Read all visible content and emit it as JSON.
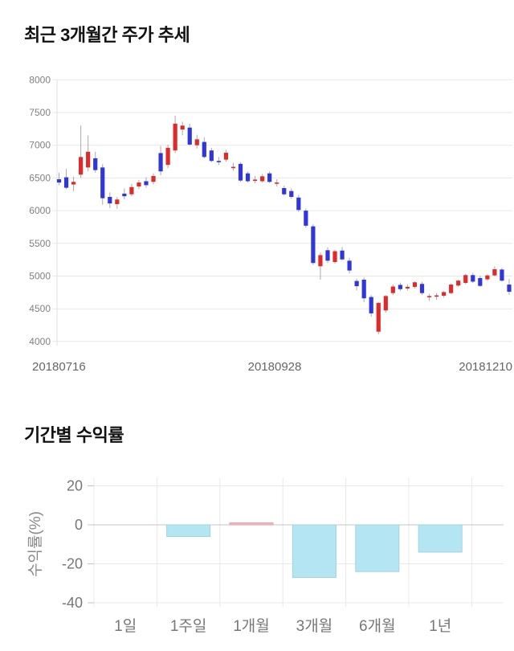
{
  "page": {
    "background": "#ffffff"
  },
  "price_chart": {
    "title": "최근 3개월간 주가 추세"
  },
  "returns_chart": {
    "title": "기간별 수익률"
  },
  "chart_data": [
    {
      "type": "candlestick",
      "title": "최근 3개월간 주가 추세",
      "ylim": [
        4000,
        8000
      ],
      "y_ticks": [
        8000,
        7500,
        7000,
        6500,
        6000,
        5500,
        5000,
        4500,
        4000
      ],
      "x_labels": [
        "20180716",
        "20180928",
        "20181210"
      ],
      "grid": true,
      "up_color": "#e02a2a",
      "down_color": "#2f36dd",
      "wick_color": "#aaaaaa",
      "tick_label_color": "#808080",
      "x_label_color": "#666666",
      "ohlc": [
        [
          6480,
          6580,
          6390,
          6430
        ],
        [
          6510,
          6640,
          6330,
          6350
        ],
        [
          6400,
          6520,
          6300,
          6440
        ],
        [
          6550,
          7300,
          6500,
          6820
        ],
        [
          6660,
          7150,
          6600,
          6900
        ],
        [
          6800,
          6900,
          6580,
          6620
        ],
        [
          6660,
          6710,
          6090,
          6190
        ],
        [
          6210,
          6280,
          6040,
          6110
        ],
        [
          6100,
          6210,
          6030,
          6170
        ],
        [
          6260,
          6340,
          6170,
          6220
        ],
        [
          6250,
          6410,
          6220,
          6360
        ],
        [
          6370,
          6470,
          6330,
          6430
        ],
        [
          6450,
          6510,
          6350,
          6390
        ],
        [
          6440,
          6570,
          6400,
          6530
        ],
        [
          6880,
          6990,
          6540,
          6600
        ],
        [
          6700,
          7010,
          6650,
          6960
        ],
        [
          6920,
          7450,
          6880,
          7330
        ],
        [
          7240,
          7360,
          7150,
          7300
        ],
        [
          7270,
          7330,
          6990,
          7010
        ],
        [
          7000,
          7160,
          6950,
          7090
        ],
        [
          7050,
          7120,
          6800,
          6820
        ],
        [
          6920,
          6960,
          6740,
          6760
        ],
        [
          6760,
          6820,
          6700,
          6755
        ],
        [
          6780,
          6930,
          6750,
          6885
        ],
        [
          6650,
          6730,
          6610,
          6670
        ],
        [
          6715,
          6740,
          6440,
          6460
        ],
        [
          6570,
          6600,
          6430,
          6450
        ],
        [
          6470,
          6530,
          6420,
          6475
        ],
        [
          6450,
          6560,
          6430,
          6525
        ],
        [
          6570,
          6600,
          6420,
          6440
        ],
        [
          6425,
          6480,
          6370,
          6430
        ],
        [
          6345,
          6380,
          6230,
          6250
        ],
        [
          6300,
          6340,
          6180,
          6210
        ],
        [
          6200,
          6240,
          5980,
          6010
        ],
        [
          6000,
          6030,
          5740,
          5770
        ],
        [
          5760,
          5790,
          5170,
          5200
        ],
        [
          5150,
          5360,
          4945,
          5320
        ],
        [
          5395,
          5440,
          5200,
          5235
        ],
        [
          5215,
          5400,
          5190,
          5380
        ],
        [
          5390,
          5445,
          5240,
          5255
        ],
        [
          5235,
          5280,
          5040,
          5085
        ],
        [
          4925,
          4960,
          4780,
          4845
        ],
        [
          4945,
          4980,
          4600,
          4660
        ],
        [
          4680,
          4710,
          4380,
          4430
        ],
        [
          4150,
          4600,
          4110,
          4590
        ],
        [
          4475,
          4710,
          4440,
          4695
        ],
        [
          4740,
          4870,
          4710,
          4840
        ],
        [
          4865,
          4900,
          4770,
          4800
        ],
        [
          4810,
          4870,
          4780,
          4835
        ],
        [
          4835,
          4920,
          4810,
          4905
        ],
        [
          4880,
          4910,
          4710,
          4740
        ],
        [
          4680,
          4730,
          4620,
          4695
        ],
        [
          4690,
          4740,
          4640,
          4705
        ],
        [
          4700,
          4770,
          4670,
          4755
        ],
        [
          4740,
          4890,
          4720,
          4870
        ],
        [
          4855,
          4945,
          4835,
          4930
        ],
        [
          4895,
          5035,
          4875,
          5015
        ],
        [
          5015,
          5050,
          4895,
          4915
        ],
        [
          4970,
          5005,
          4835,
          4850
        ],
        [
          4950,
          5025,
          4925,
          5010
        ],
        [
          5010,
          5150,
          4995,
          5105
        ],
        [
          5100,
          5125,
          4915,
          4930
        ],
        [
          4870,
          4955,
          4715,
          4760
        ]
      ]
    },
    {
      "type": "bar",
      "title": "기간별 수익률",
      "categories": [
        "1일",
        "1주일",
        "1개월",
        "3개월",
        "6개월",
        "1년"
      ],
      "values": [
        0,
        -6,
        1,
        -27,
        -24,
        -14
      ],
      "ylabel": "수익률(%)",
      "y_ticks": [
        20,
        0,
        -20,
        -40
      ],
      "ylim": [
        -45,
        25
      ],
      "grid": true,
      "legend": "none",
      "negative_color": "#b3e6f2",
      "negative_border": "#9fd4de",
      "positive_color": "#f3b6bd",
      "positive_border": "#e9a2ab",
      "axis_color": "#c5c5c5",
      "grid_color": "#e8e8e8",
      "tick_label_color": "#777777",
      "ylabel_color": "#888888"
    }
  ]
}
